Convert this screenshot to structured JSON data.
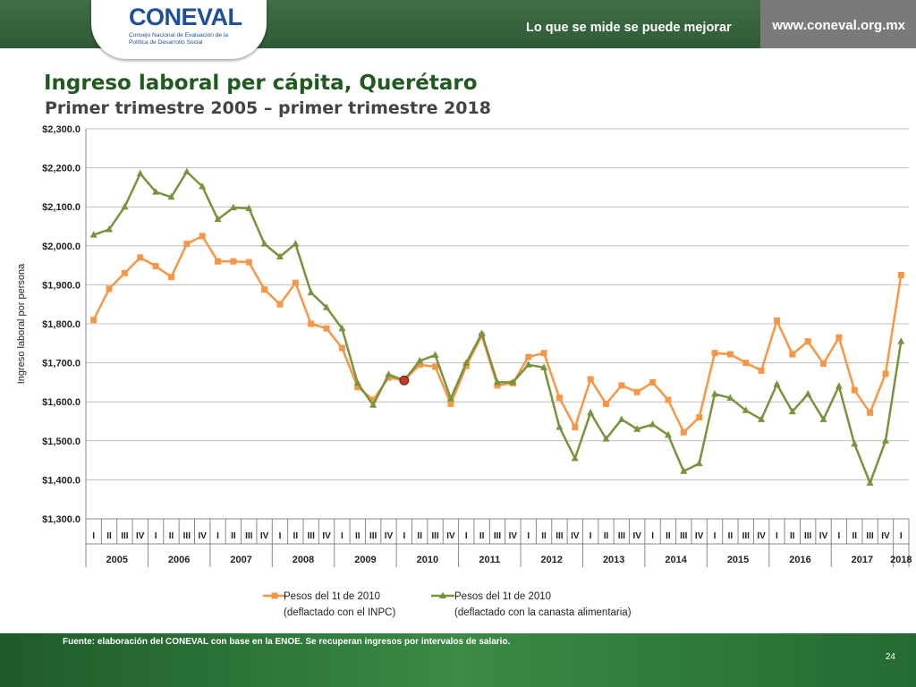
{
  "header": {
    "org_name": "CONEVAL",
    "org_full_name": "Consejo Nacional de Evaluación de la Política de Desarrollo Social",
    "slogan": "Lo que se mide se puede mejorar",
    "website": "www.coneval.org.mx"
  },
  "colors": {
    "header_green": "#3b6b42",
    "url_gray": "#7a7a7a",
    "title_green": "#1f5a1f",
    "series_inpc": "#f79646",
    "series_canasta": "#77933c",
    "highlight_point": "#c0392b"
  },
  "footer": {
    "source": "Fuente: elaboración del CONEVAL con base en la ENOE. Se recuperan ingresos por intervalos de salario.",
    "page_number": "24"
  },
  "chart_data": {
    "type": "line",
    "title": "Ingreso laboral per cápita, Querétaro",
    "subtitle": "Primer trimestre 2005 – primer trimestre 2018",
    "ylabel": "Ingreso laboral por persona",
    "xlabel": "",
    "ylim": [
      1300,
      2300
    ],
    "y_ticks": [
      "$1,300.0",
      "$1,400.0",
      "$1,500.0",
      "$1,600.0",
      "$1,700.0",
      "$1,800.0",
      "$1,900.0",
      "$2,000.0",
      "$2,100.0",
      "$2,200.0",
      "$2,300.0"
    ],
    "grid": true,
    "legend_position": "bottom",
    "quarters": [
      "I",
      "II",
      "III",
      "IV",
      "I",
      "II",
      "III",
      "IV",
      "I",
      "II",
      "III",
      "IV",
      "I",
      "II",
      "III",
      "IV",
      "I",
      "II",
      "III",
      "IV",
      "I",
      "II",
      "III",
      "IV",
      "I",
      "II",
      "III",
      "IV",
      "I",
      "II",
      "III",
      "IV",
      "I",
      "II",
      "III",
      "IV",
      "I",
      "II",
      "III",
      "IV",
      "I",
      "II",
      "III",
      "IV",
      "I",
      "II",
      "III",
      "IV",
      "I",
      "II",
      "III",
      "IV",
      "I"
    ],
    "years": [
      "2005",
      "2006",
      "2007",
      "2008",
      "2009",
      "2010",
      "2011",
      "2012",
      "2013",
      "2014",
      "2015",
      "2016",
      "2017",
      "2018"
    ],
    "highlight": {
      "index": 20,
      "value": 1655
    },
    "series": [
      {
        "name": "Pesos del 1t de 2010 (deflactado con el INPC)",
        "legend_line1": "Pesos del 1t de 2010",
        "legend_line2": "(deflactado con el INPC)",
        "marker": "square",
        "values": [
          1810,
          1890,
          1930,
          1970,
          1948,
          1920,
          2005,
          2025,
          1960,
          1960,
          1958,
          1888,
          1850,
          1905,
          1800,
          1788,
          1738,
          1638,
          1605,
          1662,
          1655,
          1695,
          1690,
          1595,
          1692,
          1770,
          1642,
          1648,
          1715,
          1725,
          1610,
          1535,
          1658,
          1595,
          1642,
          1625,
          1650,
          1605,
          1522,
          1560,
          1725,
          1722,
          1700,
          1680,
          1808,
          1722,
          1755,
          1698,
          1765,
          1630,
          1572,
          1672,
          1925
        ]
      },
      {
        "name": "Pesos del 1t de 2010 (deflactado con la canasta alimentaria)",
        "legend_line1": "Pesos del 1t de 2010",
        "legend_line2": "(deflactado con la canasta alimentaria)",
        "marker": "triangle",
        "values": [
          2028,
          2042,
          2100,
          2185,
          2138,
          2125,
          2190,
          2152,
          2068,
          2098,
          2096,
          2005,
          1972,
          2005,
          1880,
          1842,
          1788,
          1648,
          1592,
          1670,
          1655,
          1705,
          1720,
          1608,
          1700,
          1775,
          1650,
          1650,
          1695,
          1688,
          1535,
          1455,
          1572,
          1505,
          1555,
          1530,
          1542,
          1515,
          1422,
          1442,
          1620,
          1610,
          1578,
          1555,
          1645,
          1575,
          1620,
          1555,
          1640,
          1492,
          1392,
          1500,
          1755
        ]
      }
    ]
  }
}
